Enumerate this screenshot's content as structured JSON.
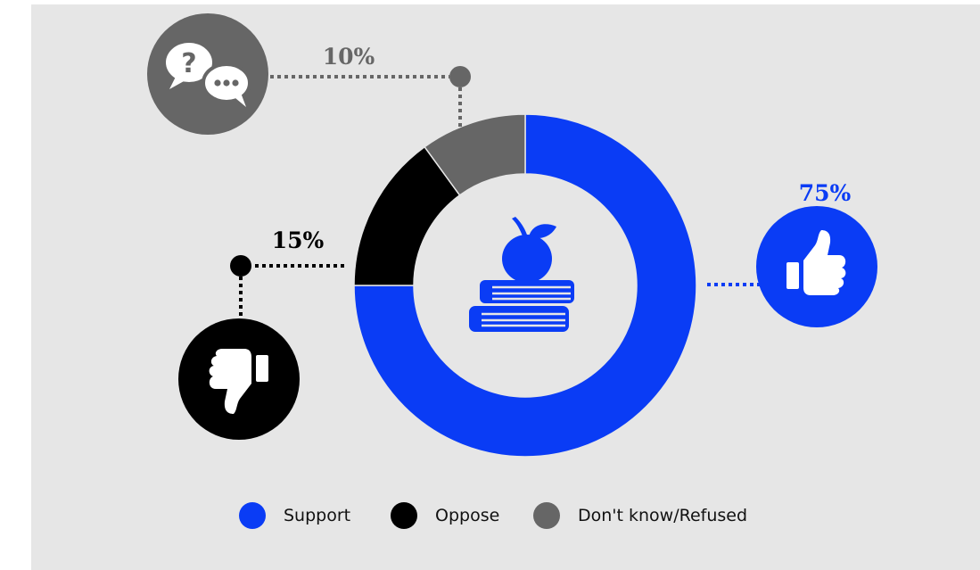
{
  "chart_data": {
    "type": "pie",
    "style": "donut",
    "legend_position": "bottom",
    "slices": [
      {
        "name": "Support",
        "value": 75,
        "label": "75%",
        "color": "#0a3cf5",
        "icon": "thumbs-up-icon"
      },
      {
        "name": "Oppose",
        "value": 15,
        "label": "15%",
        "color": "#000000",
        "icon": "thumbs-down-icon"
      },
      {
        "name": "Don't know/Refused",
        "value": 10,
        "label": "10%",
        "color": "#666666",
        "icon": "speech-bubbles-question-icon"
      }
    ],
    "center_icon": "books-apple-icon"
  }
}
